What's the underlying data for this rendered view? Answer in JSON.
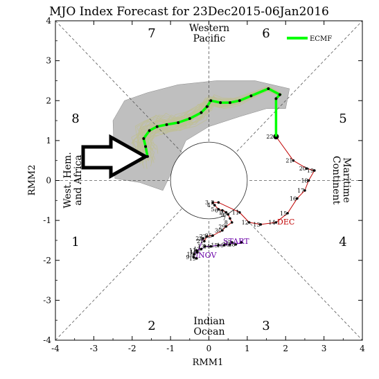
{
  "chart_data": {
    "type": "scatter",
    "title": "MJO Index Forecast for 23Dec2015-06Jan2016",
    "xlabel": "RMM1",
    "ylabel": "RMM2",
    "xlim": [
      -4,
      4
    ],
    "ylim": [
      -4,
      4
    ],
    "xticks": [
      "-4",
      "-3",
      "-2",
      "-1",
      "0",
      "1",
      "2",
      "3",
      "4"
    ],
    "yticks": [
      "-4",
      "-3",
      "-2",
      "-1",
      "0",
      "1",
      "2",
      "3",
      "4"
    ],
    "grid": "dashed zero lines and diagonals",
    "phase_numbers": [
      "1",
      "2",
      "3",
      "4",
      "5",
      "6",
      "7",
      "8"
    ],
    "regions": {
      "bottom_line1": "Indian",
      "bottom_line2": "Ocean",
      "right_line1": "Maritime",
      "right_line2": "Continent",
      "top_line1": "Western",
      "top_line2": "Pacific",
      "left_line1": "West. Hem.",
      "left_line2": "and Africa"
    },
    "legend": {
      "label": "ECMF",
      "color": "#00ff00",
      "placement": "top-right"
    },
    "month_labels": {
      "start": "START",
      "nov": "NOV",
      "dec": "DEC"
    },
    "colors": {
      "nov_track": "#6a00a8",
      "dec_track": "#c00000",
      "forecast": "#00ff00",
      "ensemble": "#ffff00",
      "spread": "#b4b4b4"
    },
    "observed_track": [
      {
        "x": 0.85,
        "y": -1.55,
        "label": "START"
      },
      {
        "x": 0.7,
        "y": -1.6,
        "label": "28"
      },
      {
        "x": 0.6,
        "y": -1.55,
        "label": "27"
      },
      {
        "x": 0.55,
        "y": -1.6,
        "label": "26"
      },
      {
        "x": 0.4,
        "y": -1.62,
        "label": "16"
      },
      {
        "x": 0.25,
        "y": -1.62,
        "label": "15"
      },
      {
        "x": 0.05,
        "y": -1.65,
        "label": "14"
      },
      {
        "x": -0.1,
        "y": -1.65,
        "label": "13"
      },
      {
        "x": -0.2,
        "y": -1.72,
        "label": "12"
      },
      {
        "x": -0.32,
        "y": -1.75,
        "label": "11"
      },
      {
        "x": -0.38,
        "y": -1.85,
        "label": "10"
      },
      {
        "x": -0.4,
        "y": -1.92,
        "label": "9"
      },
      {
        "x": -0.32,
        "y": -1.95,
        "label": "19"
      },
      {
        "x": -0.3,
        "y": -1.8,
        "label": "16"
      },
      {
        "x": -0.15,
        "y": -1.45,
        "label": "22"
      },
      {
        "x": -0.12,
        "y": -1.52,
        "label": "21"
      },
      {
        "x": -0.05,
        "y": -1.4,
        "label": "23"
      },
      {
        "x": 0.1,
        "y": -1.38,
        "label": "25"
      },
      {
        "x": 0.35,
        "y": -1.25,
        "label": "30"
      },
      {
        "x": 0.45,
        "y": -1.15,
        "label": "29"
      },
      {
        "x": 0.6,
        "y": -1.05,
        "label": "8"
      },
      {
        "x": 0.55,
        "y": -0.95,
        "label": "7"
      },
      {
        "x": 0.5,
        "y": -0.85,
        "label": "9"
      },
      {
        "x": 0.45,
        "y": -0.8,
        "label": "10"
      },
      {
        "x": 0.35,
        "y": -0.75,
        "label": "6"
      },
      {
        "x": 0.25,
        "y": -0.72,
        "label": "5"
      },
      {
        "x": 0.15,
        "y": -0.62,
        "label": "4"
      },
      {
        "x": 0.1,
        "y": -0.55,
        "label": "3"
      },
      {
        "x": 0.25,
        "y": -0.55,
        "label": "2"
      },
      {
        "x": 0.8,
        "y": -0.8,
        "label": "11"
      },
      {
        "x": 1.05,
        "y": -1.05,
        "label": "12"
      },
      {
        "x": 1.35,
        "y": -1.1,
        "label": "13"
      },
      {
        "x": 1.75,
        "y": -1.05,
        "label": "14"
      },
      {
        "x": 2.05,
        "y": -0.82,
        "label": "15"
      },
      {
        "x": 2.3,
        "y": -0.45,
        "label": "16"
      },
      {
        "x": 2.5,
        "y": -0.25,
        "label": "17"
      },
      {
        "x": 2.6,
        "y": 0.0,
        "label": "18"
      },
      {
        "x": 2.75,
        "y": 0.25,
        "label": "19"
      },
      {
        "x": 2.55,
        "y": 0.3,
        "label": "20"
      },
      {
        "x": 2.2,
        "y": 0.5,
        "label": "21"
      },
      {
        "x": 1.75,
        "y": 1.1,
        "label": "22"
      }
    ],
    "forecast_track": [
      {
        "x": 1.75,
        "y": 1.1
      },
      {
        "x": 1.75,
        "y": 2.05
      },
      {
        "x": 1.85,
        "y": 2.15
      },
      {
        "x": 1.55,
        "y": 2.3
      },
      {
        "x": 1.1,
        "y": 2.12
      },
      {
        "x": 0.8,
        "y": 2.0
      },
      {
        "x": 0.55,
        "y": 1.95
      },
      {
        "x": 0.3,
        "y": 1.95
      },
      {
        "x": 0.05,
        "y": 2.0
      },
      {
        "x": -0.05,
        "y": 1.85
      },
      {
        "x": -0.2,
        "y": 1.7
      },
      {
        "x": -0.5,
        "y": 1.55
      },
      {
        "x": -0.8,
        "y": 1.45
      },
      {
        "x": -1.1,
        "y": 1.4
      },
      {
        "x": -1.35,
        "y": 1.35
      },
      {
        "x": -1.55,
        "y": 1.25
      },
      {
        "x": -1.7,
        "y": 1.05
      },
      {
        "x": -1.65,
        "y": 0.85
      },
      {
        "x": -1.6,
        "y": 0.6
      }
    ],
    "spread_polygon": [
      {
        "x": -2.45,
        "y": 0.05
      },
      {
        "x": -2.5,
        "y": 1.5
      },
      {
        "x": -2.2,
        "y": 2.0
      },
      {
        "x": -1.6,
        "y": 2.2
      },
      {
        "x": -0.8,
        "y": 2.4
      },
      {
        "x": 0.2,
        "y": 2.5
      },
      {
        "x": 1.2,
        "y": 2.5
      },
      {
        "x": 2.1,
        "y": 2.3
      },
      {
        "x": 2.0,
        "y": 1.8
      },
      {
        "x": 1.5,
        "y": 1.8
      },
      {
        "x": 0.8,
        "y": 1.6
      },
      {
        "x": 0.0,
        "y": 1.35
      },
      {
        "x": -0.6,
        "y": 1.0
      },
      {
        "x": -0.9,
        "y": 0.35
      },
      {
        "x": -1.2,
        "y": -0.25
      },
      {
        "x": -1.8,
        "y": -0.05
      }
    ]
  }
}
